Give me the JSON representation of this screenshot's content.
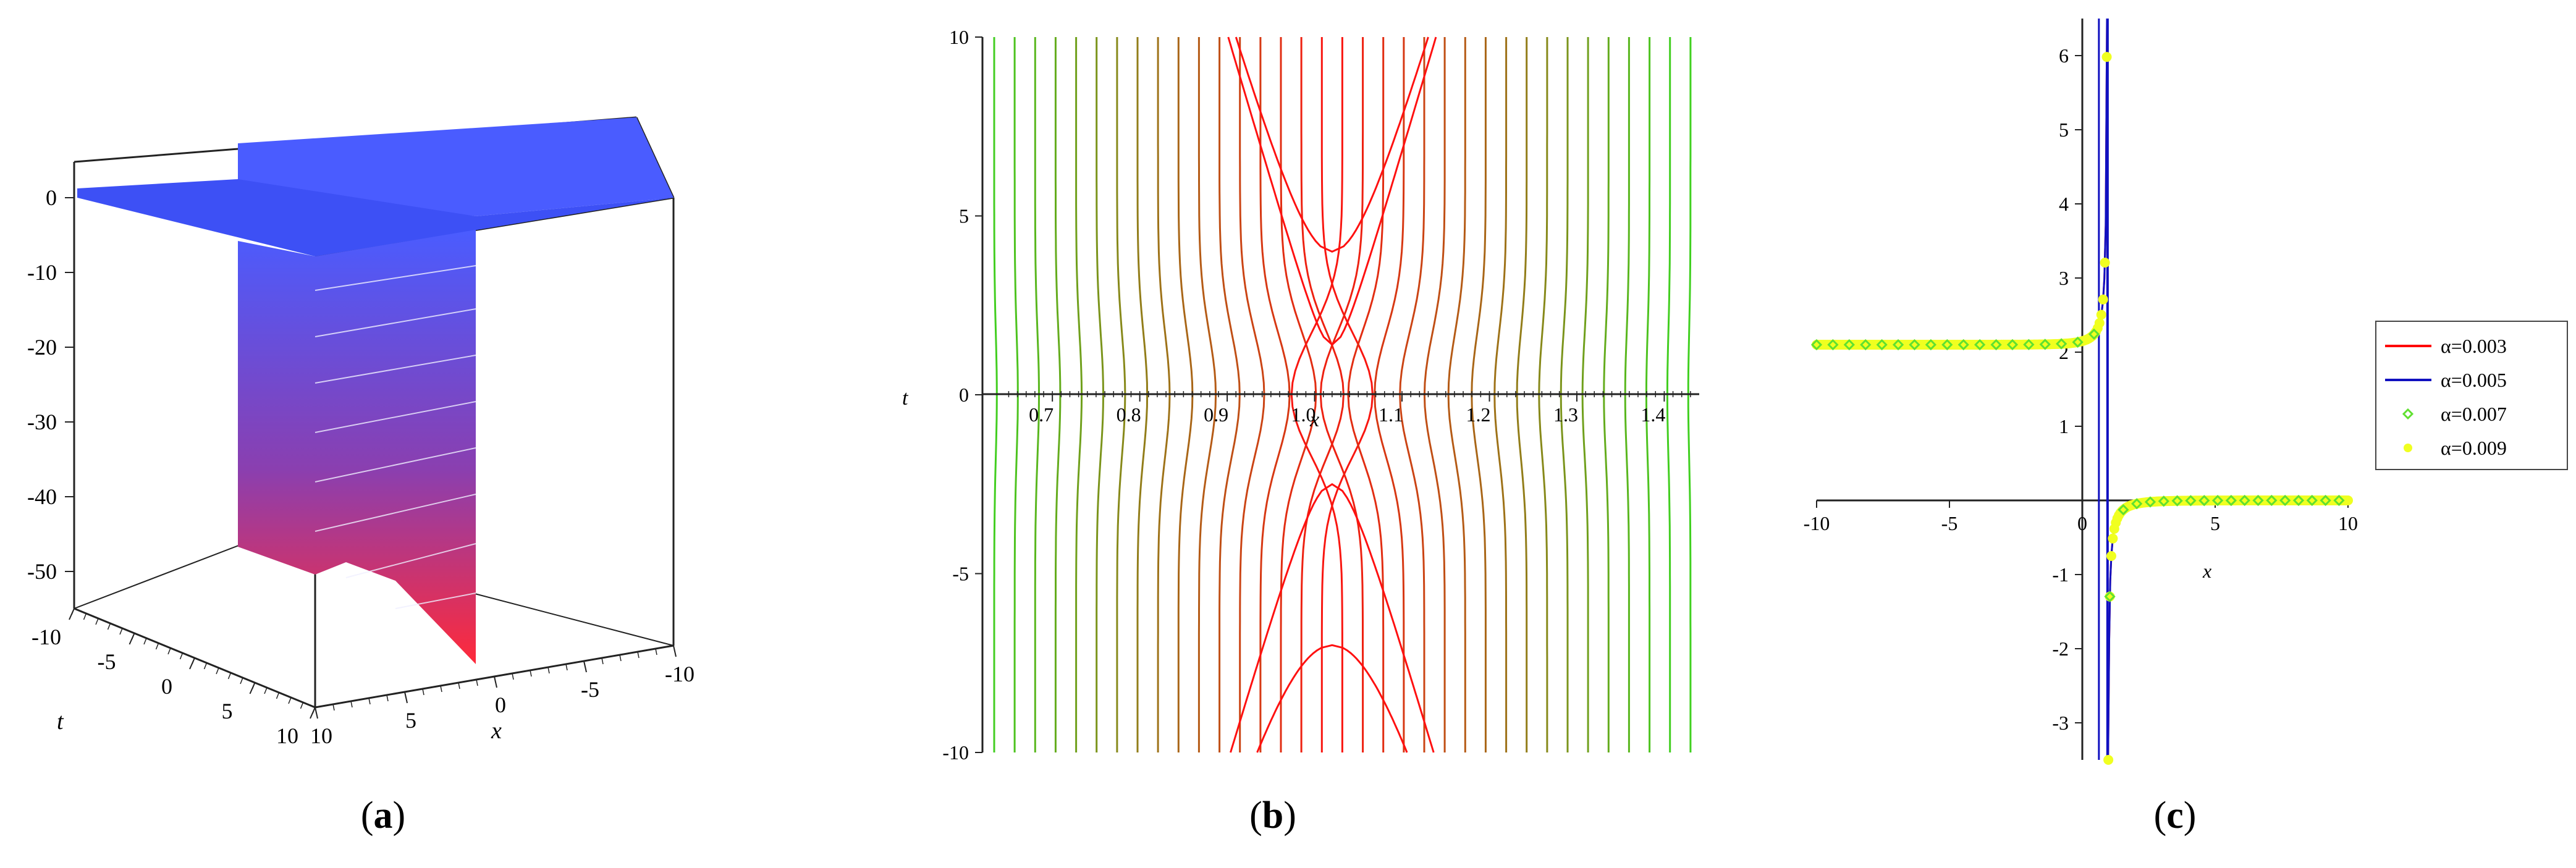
{
  "panels": [
    {
      "caption_open": "(",
      "caption_letter": "a",
      "caption_close": ")"
    },
    {
      "caption_open": "(",
      "caption_letter": "b",
      "caption_close": ")"
    },
    {
      "caption_open": "(",
      "caption_letter": "c",
      "caption_close": ")"
    }
  ],
  "colors": {
    "surface_top": "#4a5cff",
    "surface_low": "#ff2a3a",
    "contour_center": "#ff1010",
    "contour_outer": "#40d020",
    "series_red": "#ff0000",
    "series_blue": "#1010c0",
    "series_green": "#60e030",
    "series_yellow": "#f0ff20"
  },
  "chart_data": [
    {
      "type": "3d-surface",
      "xlabel": "x",
      "ylabel": "t",
      "z_ticks": [
        "0",
        "-10",
        "-20",
        "-30",
        "-40",
        "-50"
      ],
      "t_ticks": [
        "-10",
        "-5",
        "0",
        "5",
        "10"
      ],
      "x_ticks": [
        "10",
        "5",
        "0",
        "-5",
        "-10"
      ],
      "zlim": [
        -55,
        5
      ],
      "xlim": [
        -10,
        10
      ],
      "tlim": [
        -10,
        10
      ]
    },
    {
      "type": "contour",
      "xlabel": "x",
      "ylabel": "t",
      "xlim": [
        0.62,
        1.44
      ],
      "ylim": [
        -10,
        10
      ],
      "x_ticks": [
        "0.7",
        "0.8",
        "0.9",
        "1.0",
        "1.1",
        "1.2",
        "1.3",
        "1.4"
      ],
      "y_ticks": [
        "10",
        "5",
        "0",
        "-5",
        "-10"
      ],
      "saddle": [
        1.02,
        0
      ],
      "levels": 34
    },
    {
      "type": "line",
      "xlabel": "x",
      "xlim": [
        -10,
        10
      ],
      "ylim": [
        -3.5,
        6.5
      ],
      "x_ticks": [
        "-10",
        "-5",
        "0",
        "5",
        "10"
      ],
      "y_ticks": [
        "6",
        "5",
        "4",
        "3",
        "2",
        "1",
        "-1",
        "-2",
        "-3"
      ],
      "legend_position": "right",
      "series": [
        {
          "name": "α=0.003",
          "style": "line",
          "left_level": 2.1,
          "pole": 0.95
        },
        {
          "name": "α=0.005",
          "style": "line",
          "left_level": 2.1,
          "pole": 0.95
        },
        {
          "name": "α=0.007",
          "style": "diamond",
          "left_level": 2.1,
          "pole": 0.95
        },
        {
          "name": "α=0.009",
          "style": "dot",
          "left_level": 2.1,
          "pole": 0.95
        }
      ]
    }
  ]
}
